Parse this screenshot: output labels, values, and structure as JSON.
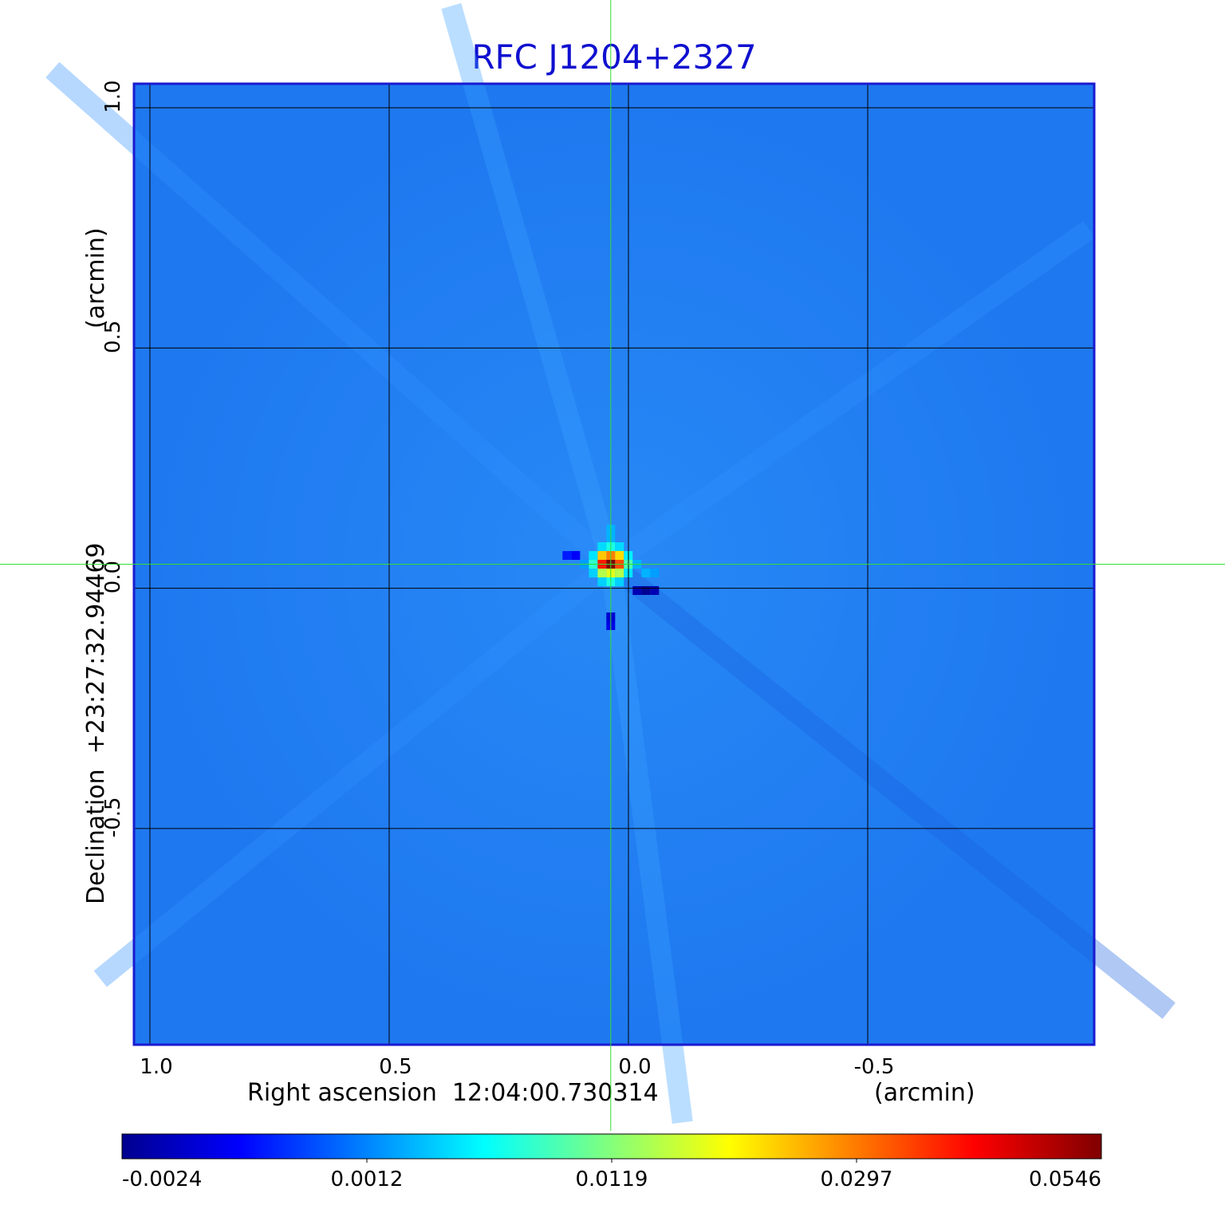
{
  "chart_data": {
    "type": "heatmap",
    "title": "RFC J1204+2327",
    "xlabel": "Right ascension  12:04:00.730314",
    "xunit": "(arcmin)",
    "ylabel": "Declination  +23:27:32.94469",
    "yunit": "(arcmin)",
    "xticks": [
      "1.0",
      "0.5",
      "0.0",
      "-0.5"
    ],
    "yticks": [
      "1.0",
      "0.5",
      "0.0",
      "-0.5"
    ],
    "xtick_values": [
      1.0,
      0.5,
      0.0,
      -0.5
    ],
    "ytick_values": [
      1.0,
      0.5,
      0.0,
      -0.5
    ],
    "xlim": [
      1.0333,
      -0.9733
    ],
    "ylim": [
      -0.95,
      1.05
    ],
    "grid": true,
    "crosshair": {
      "x": 0.037,
      "y": 0.05
    },
    "source_peak": {
      "x": 0.037,
      "y": 0.05,
      "value": 0.0546
    },
    "colorbar": {
      "ticks": [
        "-0.0024",
        "0.0012",
        "0.0119",
        "0.0297",
        "0.0546"
      ],
      "min": -0.0024,
      "max": 0.0546,
      "colormap": "jet"
    },
    "colors": {
      "background_map": "#1e78f0",
      "frame": "#1a1ad0",
      "title": "#1010d0",
      "crosshair": "#33dd33",
      "grid": "#000000"
    }
  }
}
